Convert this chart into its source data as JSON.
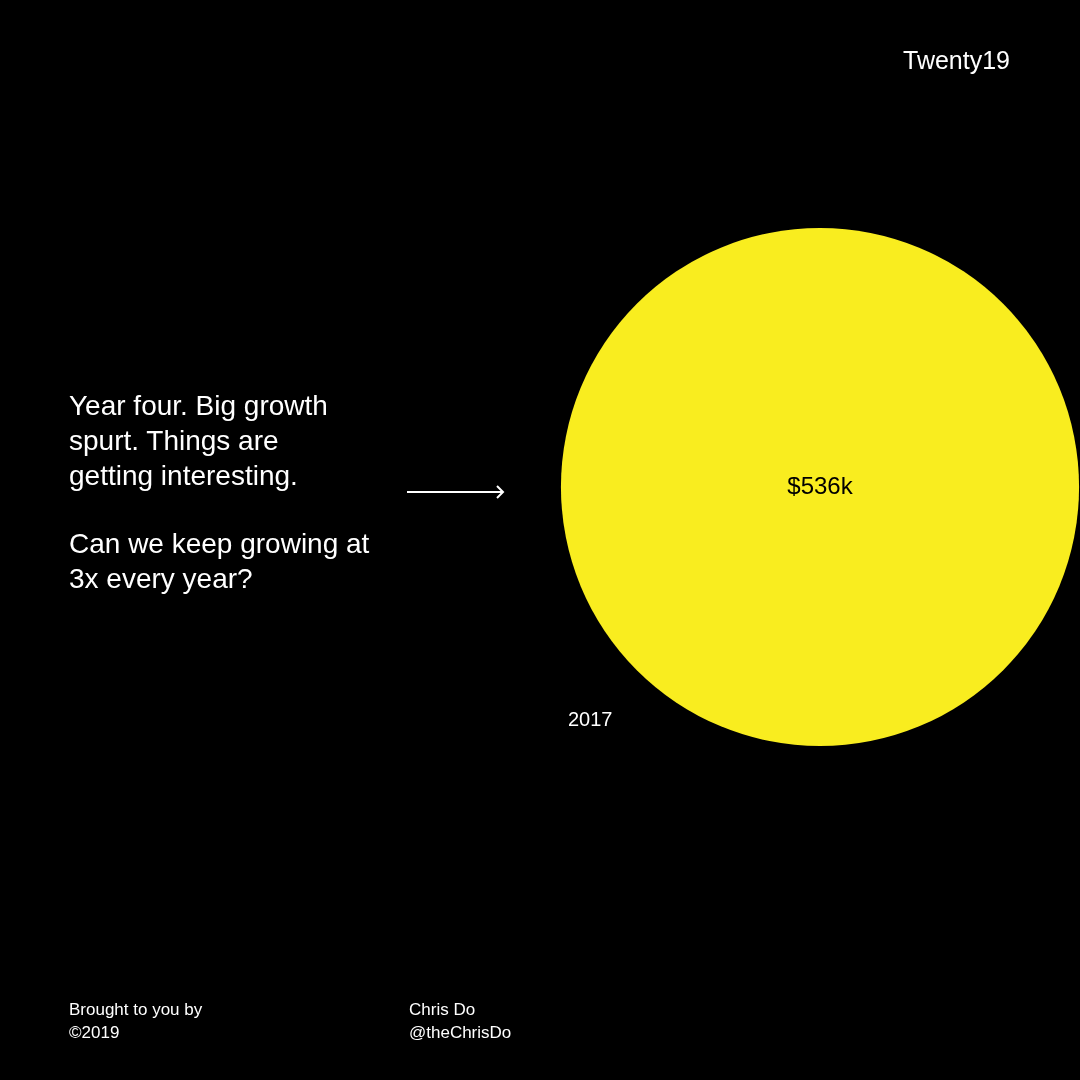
{
  "chart_data": {
    "type": "other",
    "title": "Twenty19",
    "categories": [
      "2017"
    ],
    "values": [
      536
    ],
    "value_labels": [
      "$536k"
    ],
    "color": "#f9ed1f",
    "annotations": [
      "Year four. Big growth spurt. Things are getting interesting.",
      "Can we keep growing at 3x every year?",
      "Brought to you by",
      "©2019",
      "Chris Do",
      "@theChrisDo"
    ]
  }
}
